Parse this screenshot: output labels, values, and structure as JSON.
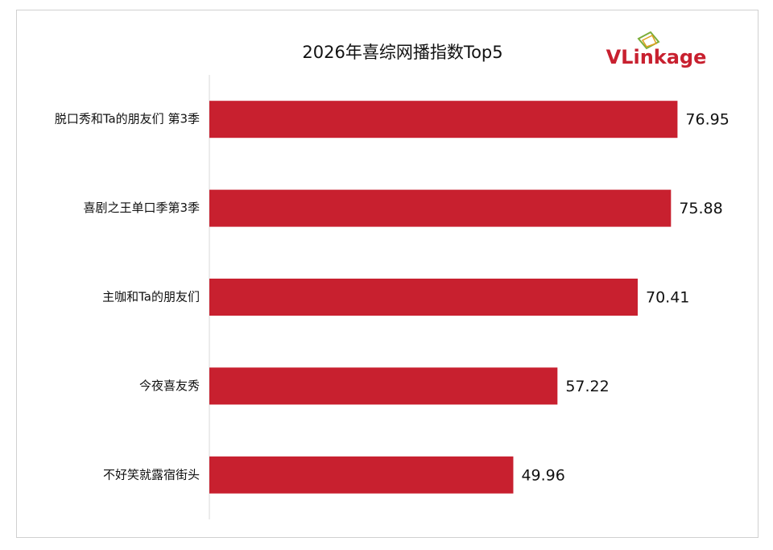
{
  "chart_data": {
    "type": "bar",
    "orientation": "horizontal",
    "title": "2026年喜综网播指数Top5",
    "logo": "VLinkage",
    "categories": [
      "脱口秀和Ta的朋友们 第3季",
      "喜剧之王单口季第3季",
      "主咖和Ta的朋友们",
      "今夜喜友秀",
      "不好笑就露宿街头"
    ],
    "values": [
      76.95,
      75.88,
      70.41,
      57.22,
      49.96
    ],
    "color": "#c8202f",
    "xlim": [
      0,
      90
    ]
  }
}
